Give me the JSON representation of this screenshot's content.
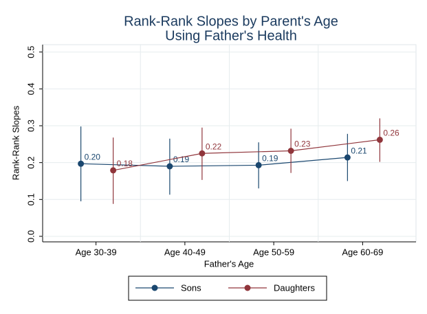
{
  "chart_data": {
    "type": "errorbar-line",
    "title": "Rank-Rank Slopes by Parent's Age",
    "subtitle": "Using Father's Health",
    "xlabel": "Father's Age",
    "ylabel": "Rank-Rank Slopes",
    "categories": [
      "Age 30-39",
      "Age 40-49",
      "Age 50-59",
      "Age 60-69"
    ],
    "series": [
      {
        "name": "Sons",
        "color": "#1a476f",
        "values": [
          0.197,
          0.19,
          0.193,
          0.214
        ],
        "value_labels": [
          "0.20",
          "0.19",
          "0.19",
          "0.21"
        ],
        "lower": [
          0.095,
          0.113,
          0.13,
          0.15
        ],
        "upper": [
          0.298,
          0.265,
          0.255,
          0.278
        ]
      },
      {
        "name": "Daughters",
        "color": "#90353b",
        "values": [
          0.179,
          0.225,
          0.232,
          0.262
        ],
        "value_labels": [
          "0.18",
          "0.22",
          "0.23",
          "0.26"
        ],
        "lower": [
          0.088,
          0.153,
          0.172,
          0.202
        ],
        "upper": [
          0.268,
          0.295,
          0.292,
          0.32
        ]
      }
    ],
    "ylim": [
      -0.015,
      0.52
    ],
    "yticks": [
      {
        "value": 0,
        "label": "0.0"
      },
      0.1,
      0.2,
      0.3,
      0.4,
      0.5
    ],
    "grid": true,
    "legend": "bottom"
  }
}
